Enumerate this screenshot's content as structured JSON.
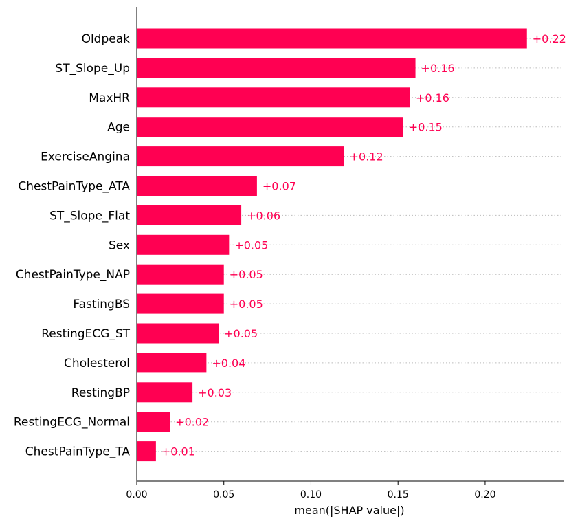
{
  "chart_data": {
    "type": "bar",
    "orientation": "horizontal",
    "xlabel": "mean(|SHAP value|)",
    "xlim": [
      0.0,
      0.245
    ],
    "xticks": [
      0.0,
      0.05,
      0.1,
      0.15,
      0.2
    ],
    "xtick_labels": [
      "0.00",
      "0.05",
      "0.10",
      "0.15",
      "0.20"
    ],
    "grid": false,
    "bar_color": "#ff0052",
    "dotted_row_guides": true,
    "categories": [
      "Oldpeak",
      "ST_Slope_Up",
      "MaxHR",
      "Age",
      "ExerciseAngina",
      "ChestPainType_ATA",
      "ST_Slope_Flat",
      "Sex",
      "ChestPainType_NAP",
      "FastingBS",
      "RestingECG_ST",
      "Cholesterol",
      "RestingBP",
      "RestingECG_Normal",
      "ChestPainType_TA"
    ],
    "values": [
      0.224,
      0.16,
      0.157,
      0.153,
      0.119,
      0.069,
      0.06,
      0.053,
      0.05,
      0.05,
      0.047,
      0.04,
      0.032,
      0.019,
      0.011
    ],
    "value_labels": [
      "+0.22",
      "+0.16",
      "+0.16",
      "+0.15",
      "+0.12",
      "+0.07",
      "+0.06",
      "+0.05",
      "+0.05",
      "+0.05",
      "+0.05",
      "+0.04",
      "+0.03",
      "+0.02",
      "+0.01"
    ]
  }
}
